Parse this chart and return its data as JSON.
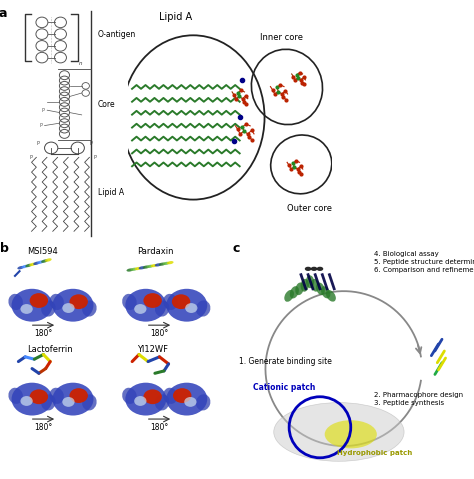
{
  "panel_a_label": "a",
  "panel_b_label": "b",
  "panel_c_label": "c",
  "lps_labels": [
    "O-antigen",
    "Core",
    "Lipid A"
  ],
  "lipid_a_text": "Lipid A",
  "inner_core_text": "Inner core",
  "outer_core_text": "Outer core",
  "msi594_text": "MSI594",
  "pardaxin_text": "Pardaxin",
  "lactoferrin_text": "Lactoferrin",
  "yl12wf_text": "Yl12WF",
  "rotation_text": "180°",
  "cycle_steps": [
    "1. Generate binding site",
    "4. Biological assay\n5. Peptide structure determination\n6. Comparison and refinement",
    "2. Pharmacophore design\n3. Peptide synthesis"
  ],
  "cationic_patch_text": "Cationic patch",
  "hydrophobic_patch_text": "Hydrophobic patch",
  "bg_color": "#ffffff",
  "text_color": "#000000",
  "green_color": "#2A7A2A",
  "dark_red": "#BB2200",
  "blue_dark": "#000066",
  "blue_mid": "#2244AA",
  "blue_circle_color": "#0000BB",
  "yellow_color": "#DDDD00",
  "gray_color": "#999999",
  "circle_color": "#222222",
  "line_color": "#444444"
}
